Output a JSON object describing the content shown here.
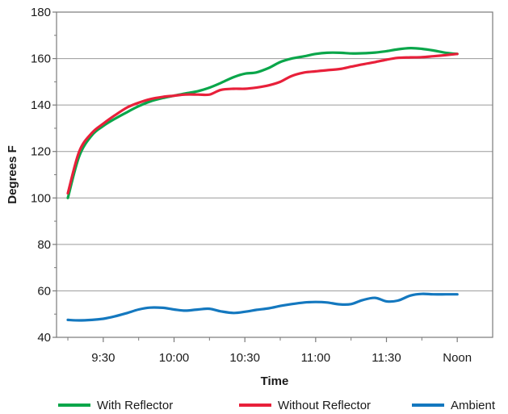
{
  "chart_data": {
    "type": "line",
    "title": "",
    "xlabel": "Time",
    "ylabel": "Degrees F",
    "xlim": [
      9.17,
      12.25
    ],
    "ylim": [
      40,
      180
    ],
    "y_ticks": [
      40,
      60,
      80,
      100,
      120,
      140,
      160,
      180
    ],
    "x_ticks": [
      {
        "x": 9.5,
        "label": "9:30"
      },
      {
        "x": 10.0,
        "label": "10:00"
      },
      {
        "x": 10.5,
        "label": "10:30"
      },
      {
        "x": 11.0,
        "label": "11:00"
      },
      {
        "x": 11.5,
        "label": "11:30"
      },
      {
        "x": 12.0,
        "label": "Noon"
      }
    ],
    "grid": "horizontal",
    "legend_position": "bottom",
    "series": [
      {
        "name": "With Reflector",
        "color": "#0aa64a",
        "x": [
          9.25,
          9.33,
          9.42,
          9.5,
          9.58,
          9.67,
          9.75,
          9.83,
          9.92,
          10.0,
          10.08,
          10.17,
          10.25,
          10.33,
          10.42,
          10.5,
          10.58,
          10.67,
          10.75,
          10.83,
          10.92,
          11.0,
          11.08,
          11.17,
          11.25,
          11.33,
          11.42,
          11.5,
          11.58,
          11.67,
          11.75,
          11.83,
          11.92,
          12.0
        ],
        "y": [
          100,
          118,
          127,
          131,
          134,
          137,
          139.5,
          141.5,
          143,
          144,
          145,
          146,
          147.5,
          149.5,
          152,
          153.5,
          154,
          156,
          158.5,
          160,
          161,
          162,
          162.5,
          162.5,
          162.2,
          162.3,
          162.6,
          163.2,
          164,
          164.5,
          164.2,
          163.5,
          162.5,
          162
        ]
      },
      {
        "name": "Without Reflector",
        "color": "#e8203a",
        "x": [
          9.25,
          9.33,
          9.42,
          9.5,
          9.58,
          9.67,
          9.75,
          9.83,
          9.92,
          10.0,
          10.08,
          10.17,
          10.25,
          10.33,
          10.42,
          10.5,
          10.58,
          10.67,
          10.75,
          10.83,
          10.92,
          11.0,
          11.08,
          11.17,
          11.25,
          11.33,
          11.42,
          11.5,
          11.58,
          11.67,
          11.75,
          11.83,
          11.92,
          12.0
        ],
        "y": [
          102,
          120,
          128,
          132,
          135.5,
          139,
          141,
          142.5,
          143.5,
          144,
          144.5,
          144.5,
          144.5,
          146.5,
          147,
          147,
          147.5,
          148.5,
          150,
          152.5,
          154,
          154.5,
          155,
          155.5,
          156.5,
          157.5,
          158.5,
          159.5,
          160.3,
          160.5,
          160.6,
          161,
          161.5,
          162
        ]
      },
      {
        "name": "Ambient",
        "color": "#1478bf",
        "x": [
          9.25,
          9.33,
          9.42,
          9.5,
          9.58,
          9.67,
          9.75,
          9.83,
          9.92,
          10.0,
          10.08,
          10.17,
          10.25,
          10.33,
          10.42,
          10.5,
          10.58,
          10.67,
          10.75,
          10.83,
          10.92,
          11.0,
          11.08,
          11.17,
          11.25,
          11.33,
          11.42,
          11.5,
          11.58,
          11.67,
          11.75,
          11.83,
          11.92,
          12.0
        ],
        "y": [
          47.5,
          47.3,
          47.5,
          48,
          49,
          50.5,
          52,
          52.8,
          52.7,
          52,
          51.5,
          52,
          52.3,
          51.2,
          50.5,
          51,
          51.8,
          52.5,
          53.5,
          54.3,
          55,
          55.2,
          55,
          54.2,
          54.3,
          56,
          57,
          55.5,
          55.8,
          58,
          58.7,
          58.5,
          58.5,
          58.5
        ]
      }
    ]
  }
}
